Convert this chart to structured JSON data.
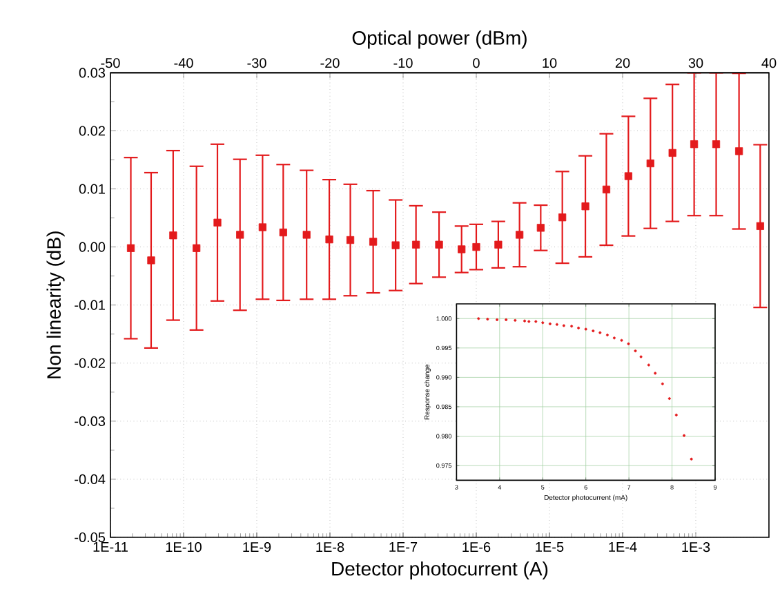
{
  "chart_data": [
    {
      "type": "scatter",
      "xlabel": "Detector photocurrent (A)",
      "ylabel": "Non linearity (dB)",
      "x2label": "Optical power (dBm)",
      "log": "x",
      "grid": true,
      "marker": "square",
      "color": "#e31a1c",
      "x": [
        1.9e-11,
        3.6e-11,
        7.2e-11,
        1.5e-10,
        2.9e-10,
        5.9e-10,
        1.2e-09,
        2.3e-09,
        4.8e-09,
        9.8e-09,
        1.9e-08,
        3.9e-08,
        7.9e-08,
        1.5e-07,
        3.1e-07,
        6.3e-07,
        1e-06,
        2e-06,
        3.9e-06,
        7.6e-06,
        1.5e-05,
        3.1e-05,
        6e-05,
        0.00012,
        0.00024,
        0.00048,
        0.00095,
        0.0019,
        0.0039,
        0.0076
      ],
      "values": [
        -0.0002,
        -0.0023,
        0.002,
        -0.0002,
        0.0042,
        0.0021,
        0.0034,
        0.0025,
        0.0021,
        0.0013,
        0.0012,
        0.0009,
        0.0003,
        0.0004,
        0.0004,
        -0.0004,
        0.0,
        0.0004,
        0.0021,
        0.0033,
        0.0051,
        0.007,
        0.0099,
        0.0122,
        0.0144,
        0.0162,
        0.0177,
        0.0177,
        0.0165,
        0.0036
      ],
      "errors": [
        0.0156,
        0.0151,
        0.0146,
        0.0141,
        0.0135,
        0.013,
        0.0124,
        0.0117,
        0.0111,
        0.0103,
        0.0096,
        0.0088,
        0.0078,
        0.0067,
        0.0056,
        0.004,
        0.0039,
        0.004,
        0.0055,
        0.0039,
        0.0079,
        0.0087,
        0.0096,
        0.0103,
        0.0112,
        0.0118,
        0.0123,
        0.0123,
        0.0134,
        0.014
      ],
      "xlim": [
        1e-11,
        0.01
      ],
      "xticks": [
        {
          "value": 1e-11,
          "label": "1E-11"
        },
        {
          "value": 1e-10,
          "label": "1E-10"
        },
        {
          "value": 1e-09,
          "label": "1E-9"
        },
        {
          "value": 1e-08,
          "label": "1E-8"
        },
        {
          "value": 1e-07,
          "label": "1E-7"
        },
        {
          "value": 1e-06,
          "label": "1E-6"
        },
        {
          "value": 1e-05,
          "label": "1E-5"
        },
        {
          "value": 0.0001,
          "label": "1E-4"
        },
        {
          "value": 0.001,
          "label": "1E-3"
        }
      ],
      "ylim": [
        -0.05,
        0.03
      ],
      "yticks": [
        {
          "value": -0.05,
          "label": "-0.05"
        },
        {
          "value": -0.04,
          "label": "-0.04"
        },
        {
          "value": -0.03,
          "label": "-0.03"
        },
        {
          "value": -0.02,
          "label": "-0.02"
        },
        {
          "value": -0.01,
          "label": "-0.01"
        },
        {
          "value": 0,
          "label": "0.00"
        },
        {
          "value": 0.01,
          "label": "0.01"
        },
        {
          "value": 0.02,
          "label": "0.02"
        },
        {
          "value": 0.03,
          "label": "0.03"
        }
      ],
      "x2lim": [
        -50,
        40
      ],
      "x2ticks": [
        -50,
        -40,
        -30,
        -20,
        -10,
        0,
        10,
        20,
        30,
        40
      ]
    },
    {
      "type": "scatter",
      "xlabel": "Detector photocurrent (mA)",
      "ylabel": "Response change",
      "grid": true,
      "marker": "circle",
      "color": "#e31a1c",
      "x": [
        3.51,
        3.72,
        3.94,
        4.15,
        4.36,
        4.58,
        4.68,
        4.84,
        5.0,
        5.17,
        5.33,
        5.49,
        5.67,
        5.83,
        6.0,
        6.17,
        6.33,
        6.5,
        6.66,
        6.83,
        6.99,
        7.15,
        7.28,
        7.46,
        7.61,
        7.78,
        7.94,
        8.1,
        8.28,
        8.45
      ],
      "values": [
        1.0,
        0.9999,
        0.9998,
        0.9998,
        0.9997,
        0.9996,
        0.9995,
        0.9995,
        0.9993,
        0.9991,
        0.999,
        0.9988,
        0.9987,
        0.9984,
        0.9982,
        0.9979,
        0.9976,
        0.9972,
        0.9967,
        0.9963,
        0.9957,
        0.9945,
        0.9935,
        0.9921,
        0.9907,
        0.9889,
        0.9864,
        0.9836,
        0.9801,
        0.9761
      ],
      "xlim": [
        3,
        9
      ],
      "xticks": [
        3,
        4,
        5,
        6,
        7,
        8,
        9
      ],
      "ylim": [
        0.9725,
        1.0025
      ],
      "yticks": [
        {
          "value": 0.975,
          "label": "0.975"
        },
        {
          "value": 0.98,
          "label": "0.980"
        },
        {
          "value": 0.985,
          "label": "0.985"
        },
        {
          "value": 0.99,
          "label": "0.990"
        },
        {
          "value": 0.995,
          "label": "0.995"
        },
        {
          "value": 1.0,
          "label": "1.000"
        }
      ]
    }
  ]
}
